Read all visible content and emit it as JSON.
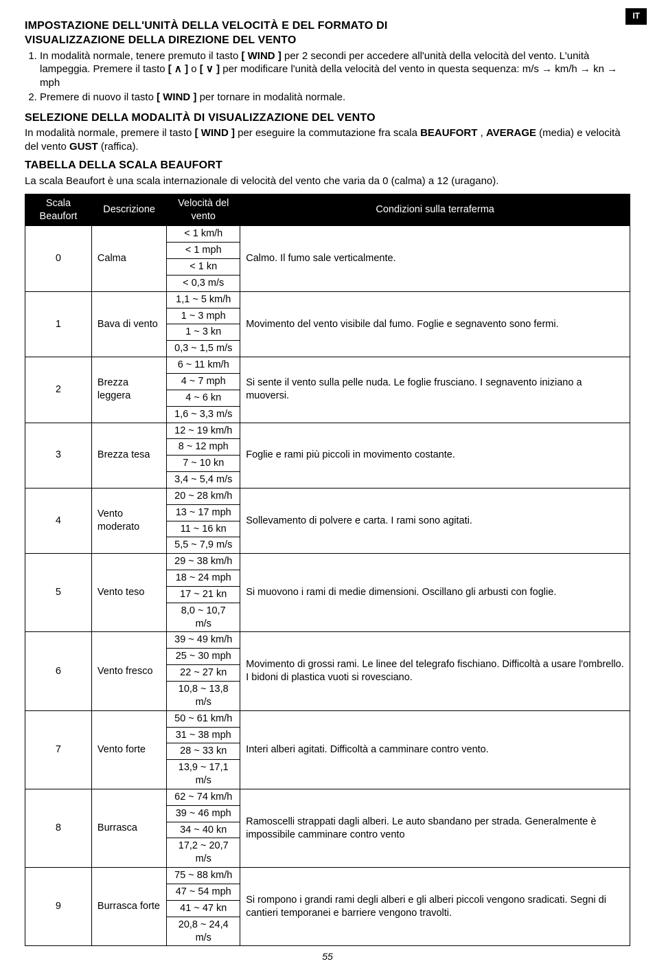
{
  "badge": {
    "lang": "IT"
  },
  "section1": {
    "title_l1": "IMPOSTAZIONE DELL'UNITÀ DELLA VELOCITÀ E DEL FORMATO DI",
    "title_l2": "VISUALIZZAZIONE DELLA DIREZIONE DEL VENTO",
    "item1_a": "In modalità normale, tenere premuto il tasto ",
    "item1_b": "[ WIND ]",
    "item1_c": " per 2 secondi per accedere all'unità della velocità del vento. L'unità lampeggia. Premere il tasto ",
    "item1_d": "[ ∧ ]",
    "item1_e": " o ",
    "item1_f": "[ ∨ ]",
    "item1_g": " per modificare l'unità della velocità del vento in questa sequenza: m/s ",
    "seq_a": "km/h",
    "seq_b": "kn",
    "seq_c": "mph",
    "item2_a": "Premere di nuovo il tasto ",
    "item2_b": "[ WIND ]",
    "item2_c": " per tornare in modalità normale."
  },
  "section2": {
    "title": "SELEZIONE DELLA MODALITÀ DI VISUALIZZAZIONE DEL VENTO",
    "p_a": "In modalità normale, premere il tasto ",
    "p_b": "[ WIND ]",
    "p_c": " per eseguire la commutazione fra scala ",
    "p_d": "BEAUFORT",
    "p_e": " , ",
    "p_f": "AVERAGE",
    "p_g": " (media) e velocità del vento ",
    "p_h": "GUST",
    "p_i": " (raffica)."
  },
  "section3": {
    "title": "TABELLA DELLA SCALA BEAUFORT",
    "intro": "La scala Beaufort è una scala internazionale di velocità del vento che varia da 0 (calma) a 12 (uragano)."
  },
  "table": {
    "h1": "Scala Beaufort",
    "h2": "Descrizione",
    "h3": "Velocità del vento",
    "h4": "Condizioni sulla terraferma",
    "rows": [
      {
        "scale": "0",
        "desc": "Calma",
        "speeds": [
          "< 1 km/h",
          "< 1 mph",
          "< 1 kn",
          "< 0,3 m/s"
        ],
        "cond": "Calmo. Il fumo sale verticalmente."
      },
      {
        "scale": "1",
        "desc": "Bava di vento",
        "speeds": [
          "1,1 ~ 5 km/h",
          "1 ~ 3 mph",
          "1 ~ 3 kn",
          "0,3 ~ 1,5 m/s"
        ],
        "cond": "Movimento del vento visibile dal fumo. Foglie e segnavento sono fermi."
      },
      {
        "scale": "2",
        "desc": "Brezza leggera",
        "speeds": [
          "6 ~ 11 km/h",
          "4 ~ 7 mph",
          "4 ~ 6 kn",
          "1,6 ~ 3,3 m/s"
        ],
        "cond": "Si sente il vento sulla pelle nuda. Le foglie frusciano. I segnavento iniziano a muoversi."
      },
      {
        "scale": "3",
        "desc": "Brezza tesa",
        "speeds": [
          "12 ~ 19 km/h",
          "8 ~ 12 mph",
          "7 ~ 10 kn",
          "3,4 ~ 5,4 m/s"
        ],
        "cond": "Foglie e rami più piccoli in movimento costante."
      },
      {
        "scale": "4",
        "desc": "Vento moderato",
        "speeds": [
          "20 ~ 28 km/h",
          "13 ~ 17 mph",
          "11 ~ 16 kn",
          "5,5 ~ 7,9 m/s"
        ],
        "cond": "Sollevamento di polvere e carta. I rami sono agitati."
      },
      {
        "scale": "5",
        "desc": "Vento teso",
        "speeds": [
          "29 ~ 38 km/h",
          "18 ~ 24 mph",
          "17 ~ 21 kn",
          "8,0 ~ 10,7 m/s"
        ],
        "cond": "Si muovono i rami di medie dimensioni. Oscillano gli arbusti con foglie."
      },
      {
        "scale": "6",
        "desc": "Vento fresco",
        "speeds": [
          "39 ~ 49 km/h",
          "25 ~ 30 mph",
          "22 ~ 27 kn",
          "10,8 ~ 13,8 m/s"
        ],
        "cond": "Movimento di grossi rami. Le linee del telegrafo fischiano. Difficoltà a usare l'ombrello. I bidoni di plastica vuoti si rovesciano."
      },
      {
        "scale": "7",
        "desc": "Vento forte",
        "speeds": [
          "50 ~ 61 km/h",
          "31 ~ 38 mph",
          "28 ~ 33 kn",
          "13,9 ~ 17,1 m/s"
        ],
        "cond": "Interi alberi agitati. Difficoltà a camminare contro vento."
      },
      {
        "scale": "8",
        "desc": "Burrasca",
        "speeds": [
          "62 ~ 74 km/h",
          "39 ~ 46 mph",
          "34 ~ 40 kn",
          "17,2 ~ 20,7 m/s"
        ],
        "cond": "Ramoscelli strappati dagli alberi. Le auto sbandano per strada. Generalmente è impossibile camminare contro vento"
      },
      {
        "scale": "9",
        "desc": "Burrasca forte",
        "speeds": [
          "75 ~ 88 km/h",
          "47 ~ 54 mph",
          "41 ~ 47 kn",
          "20,8 ~ 24,4 m/s"
        ],
        "cond": "Si rompono i grandi rami degli alberi e gli alberi piccoli vengono sradicati. Segni di cantieri temporanei e barriere vengono travolti."
      }
    ]
  },
  "pagenum": "55",
  "arrow": "→"
}
